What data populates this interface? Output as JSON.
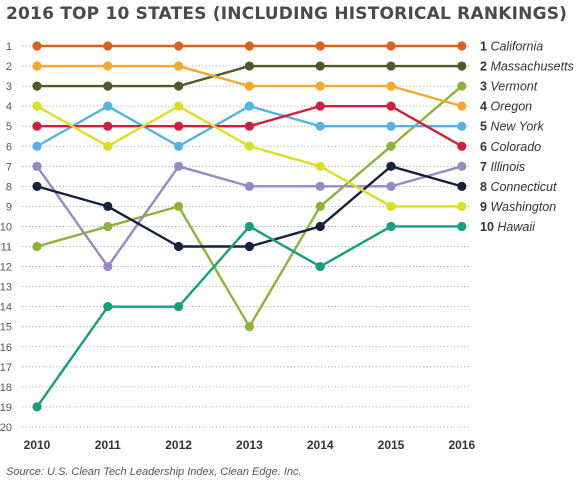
{
  "chart_data": {
    "type": "line",
    "title": "2016 TOP 10 STATES (INCLUDING HISTORICAL RANKINGS)",
    "source": "Source: U.S. Clean Tech Leadership Index, Clean Edge. Inc.",
    "x": [
      "2010",
      "2011",
      "2012",
      "2013",
      "2014",
      "2015",
      "2016"
    ],
    "y_ticks": [
      "1",
      "2",
      "3",
      "4",
      "5",
      "6",
      "7",
      "8",
      "9",
      "10",
      "11",
      "12",
      "13",
      "14",
      "15",
      "16",
      "17",
      "18",
      "19",
      "20"
    ],
    "ylim": [
      1,
      20
    ],
    "y_inverted": true,
    "grid": "horizontal dotted",
    "legend_placement": "right",
    "series": [
      {
        "rank_label": "1",
        "name": "California",
        "color": "#d9631e",
        "values": [
          1,
          1,
          1,
          1,
          1,
          1,
          1
        ]
      },
      {
        "rank_label": "2",
        "name": "Massachusetts",
        "color": "#50592a",
        "values": [
          3,
          3,
          3,
          2,
          2,
          2,
          2
        ]
      },
      {
        "rank_label": "3",
        "name": "Vermont",
        "color": "#8db33a",
        "values": [
          11,
          10,
          9,
          15,
          9,
          6,
          3
        ]
      },
      {
        "rank_label": "4",
        "name": "Oregon",
        "color": "#f0a92c",
        "values": [
          2,
          2,
          2,
          3,
          3,
          3,
          4
        ]
      },
      {
        "rank_label": "5",
        "name": "New York",
        "color": "#55b2e3",
        "values": [
          6,
          4,
          6,
          4,
          5,
          5,
          5
        ]
      },
      {
        "rank_label": "6",
        "name": "Colorado",
        "color": "#cf1f3e",
        "values": [
          5,
          5,
          5,
          5,
          4,
          4,
          6
        ]
      },
      {
        "rank_label": "7",
        "name": "Illinois",
        "color": "#9889c4",
        "values": [
          7,
          12,
          7,
          8,
          8,
          8,
          7
        ]
      },
      {
        "rank_label": "8",
        "name": "Connecticut",
        "color": "#16213f",
        "values": [
          8,
          9,
          11,
          11,
          10,
          7,
          8
        ]
      },
      {
        "rank_label": "9",
        "name": "Washington",
        "color": "#d8df26",
        "values": [
          4,
          6,
          4,
          6,
          7,
          9,
          9
        ]
      },
      {
        "rank_label": "10",
        "name": "Hawaii",
        "color": "#14a07c",
        "values": [
          19,
          14,
          14,
          10,
          12,
          10,
          10
        ]
      }
    ]
  }
}
